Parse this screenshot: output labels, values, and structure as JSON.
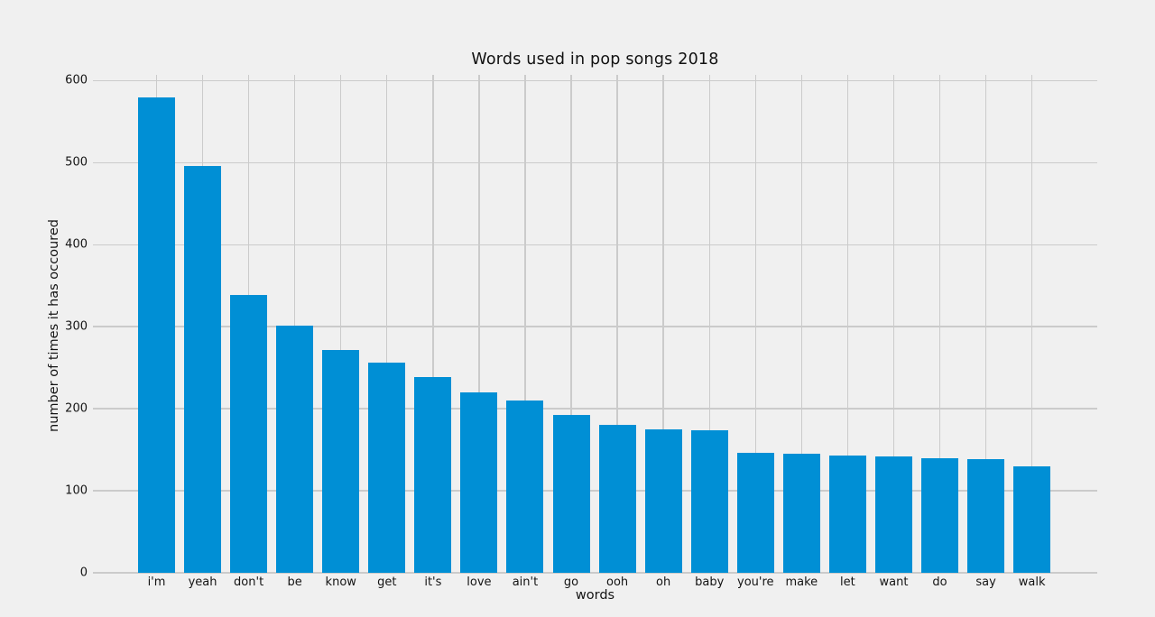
{
  "chart_data": {
    "type": "bar",
    "title": "Words used in pop songs 2018",
    "xlabel": "words",
    "ylabel": "number of times it has occoured",
    "categories": [
      "i'm",
      "yeah",
      "don't",
      "be",
      "know",
      "get",
      "it's",
      "love",
      "ain't",
      "go",
      "ooh",
      "oh",
      "baby",
      "you're",
      "make",
      "let",
      "want",
      "do",
      "say",
      "walk"
    ],
    "values": [
      580,
      496,
      339,
      301,
      272,
      256,
      239,
      220,
      210,
      193,
      180,
      175,
      174,
      146,
      145,
      143,
      142,
      140,
      139,
      130
    ],
    "yticks": [
      0,
      100,
      200,
      300,
      400,
      500,
      600
    ],
    "ylim": [
      0,
      607
    ],
    "grid": true,
    "legend": "none",
    "colors": {
      "bar": "#008fd5",
      "background": "#f0f0f0",
      "gridline": "#cbcbcb",
      "text": "#141414"
    }
  }
}
